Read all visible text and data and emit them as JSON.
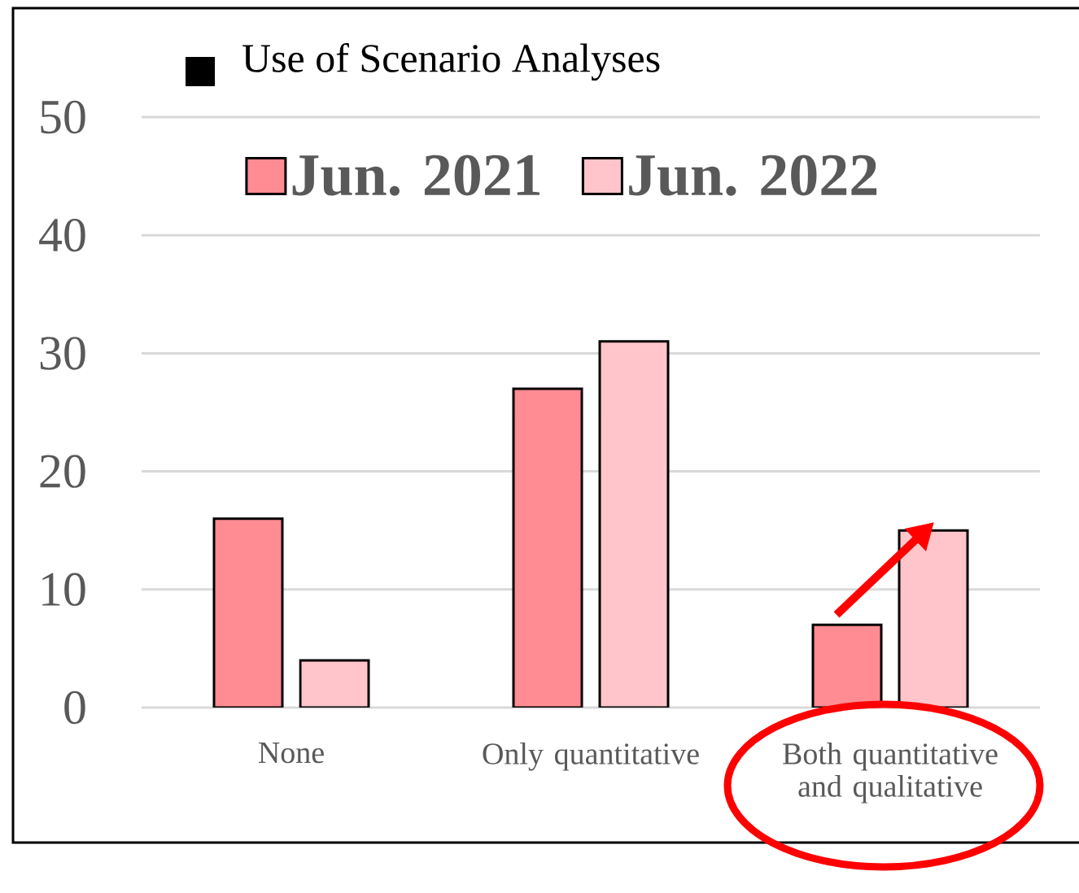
{
  "chart_data": {
    "type": "bar",
    "title": "Use of Scenario Analyses",
    "categories": [
      "None",
      "Only quantitative",
      "Both quantitative and qualitative"
    ],
    "series": [
      {
        "name": "Jun. 2021",
        "color": "#ff8b93",
        "values": [
          16,
          27,
          7
        ]
      },
      {
        "name": "Jun. 2022",
        "color": "#ffc5ca",
        "values": [
          4,
          31,
          15
        ]
      }
    ],
    "ylim": [
      0,
      50
    ],
    "yticks": [
      0,
      10,
      20,
      30,
      40,
      50
    ],
    "grid": "y",
    "legend": "top"
  }
}
